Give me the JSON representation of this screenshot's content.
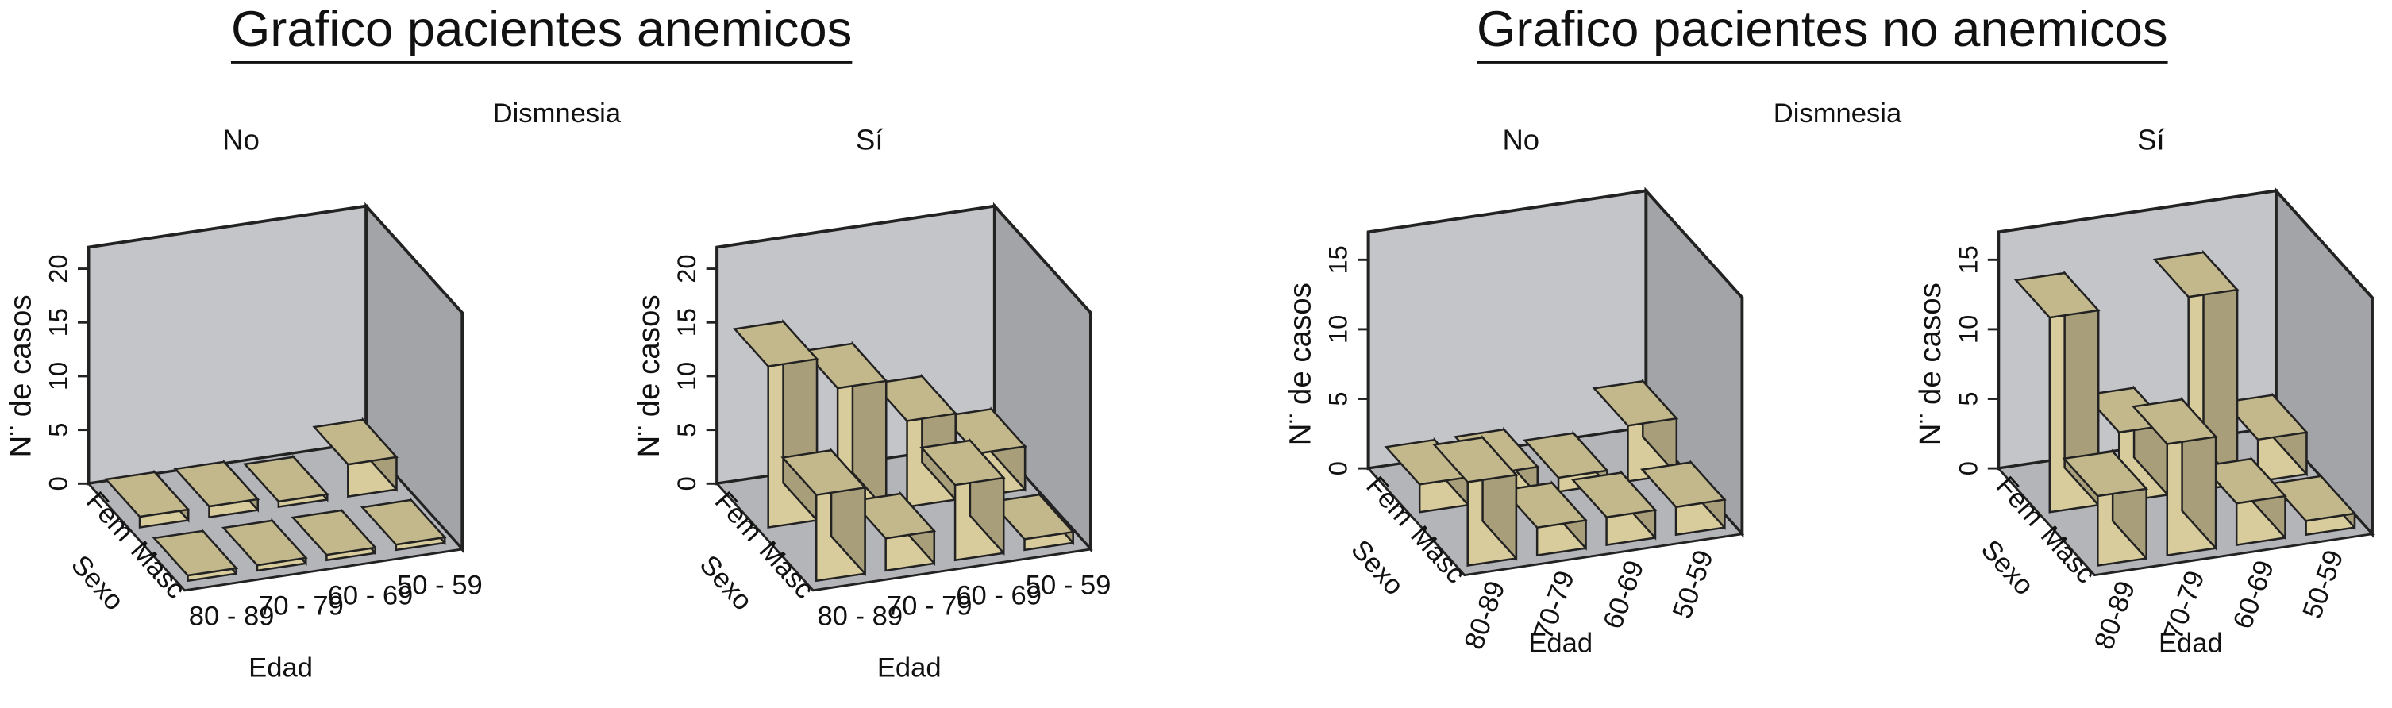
{
  "chart_data": [
    {
      "type": "bar3d",
      "title": "Grafico pacientes anemicos",
      "facet_title": "Dismnesia",
      "subtitle": "No",
      "ylabel": "N¨ de casos",
      "xlabel": "Edad",
      "zlabel": "Sexo",
      "categories": [
        "80 - 89",
        "70 - 79",
        "60 - 69",
        "50 - 59"
      ],
      "series": [
        {
          "name": "Fem",
          "values": [
            1,
            1,
            0.5,
            3
          ]
        },
        {
          "name": "Masc",
          "values": [
            0.5,
            0.5,
            0.5,
            0.5
          ]
        }
      ],
      "color": "#d8cc9c",
      "ylim": [
        0,
        22
      ],
      "yticks": [
        0,
        5,
        10,
        15,
        20
      ]
    },
    {
      "type": "bar3d",
      "subtitle": "Sí",
      "ylabel": "N¨ de casos",
      "xlabel": "Edad",
      "zlabel": "Sexo",
      "categories": [
        "80 - 89",
        "70 - 79",
        "60 - 69",
        "50 - 59"
      ],
      "series": [
        {
          "name": "Fem",
          "values": [
            15,
            12,
            8,
            4
          ]
        },
        {
          "name": "Masc",
          "values": [
            8,
            3,
            7,
            1
          ]
        }
      ],
      "color": "#d8cc9c",
      "ylim": [
        0,
        22
      ],
      "yticks": [
        0,
        5,
        10,
        15,
        20
      ]
    },
    {
      "type": "bar3d",
      "title": "Grafico pacientes no anemicos",
      "facet_title": "Dismnesia",
      "subtitle": "No",
      "ylabel": "N¨ de casos",
      "xlabel": "Edad",
      "zlabel": "Sexo",
      "categories": [
        "80-89",
        "70-79",
        "60-69",
        "50-59"
      ],
      "series": [
        {
          "name": "Fem",
          "values": [
            2,
            2,
            1,
            4
          ]
        },
        {
          "name": "Masc",
          "values": [
            6,
            2,
            2,
            2
          ]
        }
      ],
      "color": "#d8cc9c",
      "ylim": [
        0,
        17
      ],
      "yticks": [
        0,
        5,
        10,
        15
      ]
    },
    {
      "type": "bar3d",
      "subtitle": "Sí",
      "ylabel": "N¨ de casos",
      "xlabel": "Edad",
      "zlabel": "Sexo",
      "categories": [
        "80-89",
        "70-79",
        "60-69",
        "50-59"
      ],
      "series": [
        {
          "name": "Fem",
          "values": [
            14,
            5,
            14,
            3
          ]
        },
        {
          "name": "Masc",
          "values": [
            5,
            8,
            3,
            1
          ]
        }
      ],
      "color": "#d8cc9c",
      "ylim": [
        0,
        17
      ],
      "yticks": [
        0,
        5,
        10,
        15
      ]
    }
  ]
}
